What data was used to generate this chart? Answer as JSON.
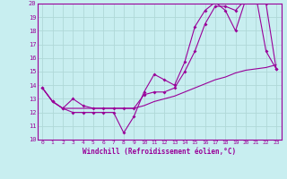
{
  "xlabel": "Windchill (Refroidissement éolien,°C)",
  "bg_color": "#c8eef0",
  "line_color": "#990099",
  "grid_color": "#b0d8d8",
  "x_min": -0.5,
  "x_max": 23.5,
  "y_min": 10,
  "y_max": 20,
  "x_ticks": [
    0,
    1,
    2,
    3,
    4,
    5,
    6,
    7,
    8,
    9,
    10,
    11,
    12,
    13,
    14,
    15,
    16,
    17,
    18,
    19,
    20,
    21,
    22,
    23
  ],
  "y_ticks": [
    10,
    11,
    12,
    13,
    14,
    15,
    16,
    17,
    18,
    19,
    20
  ],
  "series1_x": [
    0,
    1,
    2,
    3,
    4,
    5,
    6,
    7,
    8,
    9,
    10,
    11,
    12,
    13,
    14,
    15,
    16,
    17,
    18,
    19,
    20,
    21,
    22,
    23
  ],
  "series1_y": [
    13.8,
    12.8,
    12.3,
    12.0,
    12.0,
    12.0,
    12.0,
    12.0,
    10.5,
    11.7,
    13.5,
    14.8,
    14.4,
    14.0,
    15.7,
    18.3,
    19.5,
    20.1,
    19.5,
    18.0,
    20.3,
    20.6,
    16.5,
    15.2
  ],
  "series2_x": [
    0,
    1,
    2,
    3,
    4,
    5,
    6,
    7,
    8,
    9,
    10,
    11,
    12,
    13,
    14,
    15,
    16,
    17,
    18,
    19,
    20,
    21,
    22,
    23
  ],
  "series2_y": [
    13.8,
    12.8,
    12.3,
    13.0,
    12.5,
    12.3,
    12.3,
    12.3,
    12.3,
    12.3,
    13.3,
    13.5,
    13.5,
    13.8,
    15.0,
    16.5,
    18.5,
    19.8,
    19.8,
    19.5,
    20.3,
    20.5,
    20.0,
    15.2
  ],
  "series3_x": [
    0,
    1,
    2,
    3,
    4,
    5,
    6,
    7,
    8,
    9,
    10,
    11,
    12,
    13,
    14,
    15,
    16,
    17,
    18,
    19,
    20,
    21,
    22,
    23
  ],
  "series3_y": [
    13.8,
    12.8,
    12.3,
    12.3,
    12.3,
    12.3,
    12.3,
    12.3,
    12.3,
    12.3,
    12.5,
    12.8,
    13.0,
    13.2,
    13.5,
    13.8,
    14.1,
    14.4,
    14.6,
    14.9,
    15.1,
    15.2,
    15.3,
    15.5
  ]
}
